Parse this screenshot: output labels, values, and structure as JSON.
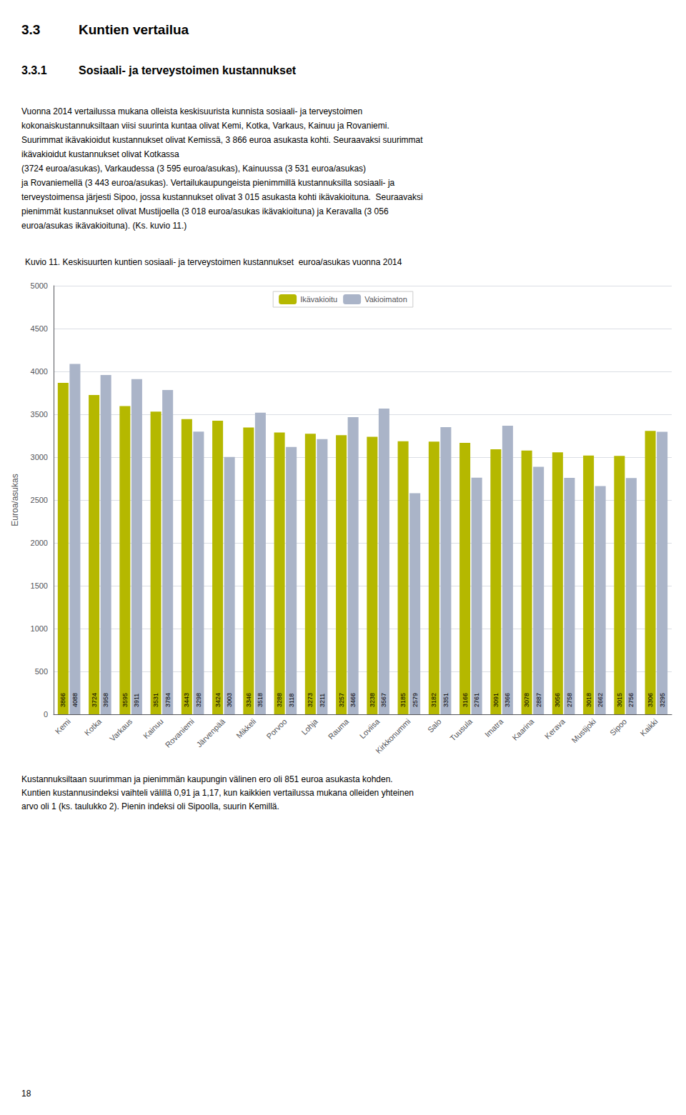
{
  "chart_data": {
    "type": "bar",
    "title": "Kuvio 11. Keskisuurten kuntien sosiaali- ja terveystoimen kustannukset  euroa/asukas vuonna 2014",
    "ylabel": "Euroa/asukas",
    "categories": [
      "Kemi",
      "Kotka",
      "Varkaus",
      "Kainuu",
      "Rovaniemi",
      "Järvenpää",
      "Mikkeli",
      "Porvoo",
      "Lohja",
      "Rauma",
      "Loviisa",
      "Kirkkonummi",
      "Salo",
      "Tuusula",
      "Imatra",
      "Kaarina",
      "Kerava",
      "Mustijoki",
      "Sipoo",
      "Kaikki"
    ],
    "series": [
      {
        "name": "Ikävakioitu",
        "color": "#b5b800",
        "values": [
          3866,
          3724,
          3595,
          3531,
          3443,
          3424,
          3346,
          3288,
          3273,
          3257,
          3238,
          3185,
          3182,
          3166,
          3091,
          3078,
          3056,
          3018,
          3015,
          3306
        ]
      },
      {
        "name": "Vakioimaton",
        "color": "#aab4c8",
        "values": [
          4088,
          3958,
          3911,
          3784,
          3298,
          3003,
          3518,
          3118,
          3211,
          3466,
          3567,
          2579,
          3351,
          2761,
          3366,
          2887,
          2758,
          2662,
          2756,
          3295
        ]
      }
    ],
    "ylim": [
      0,
      5000
    ],
    "yticks": [
      0,
      500,
      1000,
      1500,
      2000,
      2500,
      3000,
      3500,
      4000,
      4500,
      5000
    ],
    "grid": true,
    "legend": "top",
    "data_labels": true
  },
  "page_text": {
    "headings": [
      [
        "3.3",
        "Kuntien vertailua"
      ],
      [
        "3.3.1",
        "Sosiaali- ja terveystoimen kustannukset"
      ]
    ],
    "body_lines": [
      "Vuonna 2014 vertailussa mukana olleista keskisuurista kunnista sosiaali- ja terveystoimen",
      "kokonaiskustannuksiltaan viisi suurinta kuntaa olivat Kemi, Kotka, Varkaus, Kainuu ja Rovaniemi.",
      "Suurimmat ikävakioidut kustannukset olivat Kemissä, 3 866 euroa asukasta kohti. Seuraavaksi suurimmat",
      "ikävakioidut kustannukset olivat Kotkassa",
      "(3724 euroa/asukas), Varkaudessa (3 595 euroa/asukas), Kainuussa (3 531 euroa/asukas)",
      "ja Rovaniemellä (3 443 euroa/asukas). Vertailukaupungeista pienimmillä kustannuksilla sosiaali- ja",
      "terveystoimensa järjesti Sipoo, jossa kustannukset olivat 3 015 asukasta kohti ikävakioituna.  Seuraavaksi",
      "pienimmät kustannukset olivat Mustijoella (3 018 euroa/asukas ikävakioituna) ja Keravalla (3 056",
      "euroa/asukas ikävakioituna). (Ks. kuvio 11.)"
    ],
    "footer_lines": [
      "Kustannuksiltaan suurimman ja pienimmän kaupungin välinen ero oli 851 euroa asukasta kohden.",
      "Kuntien kustannusindeksi vaihteli välillä 0,91 ja 1,17, kun kaikkien vertailussa mukana olleiden yhteinen",
      "arvo oli 1 (ks. taulukko 2). Pienin indeksi oli Sipoolla, suurin Kemillä."
    ],
    "page_number": "18"
  }
}
